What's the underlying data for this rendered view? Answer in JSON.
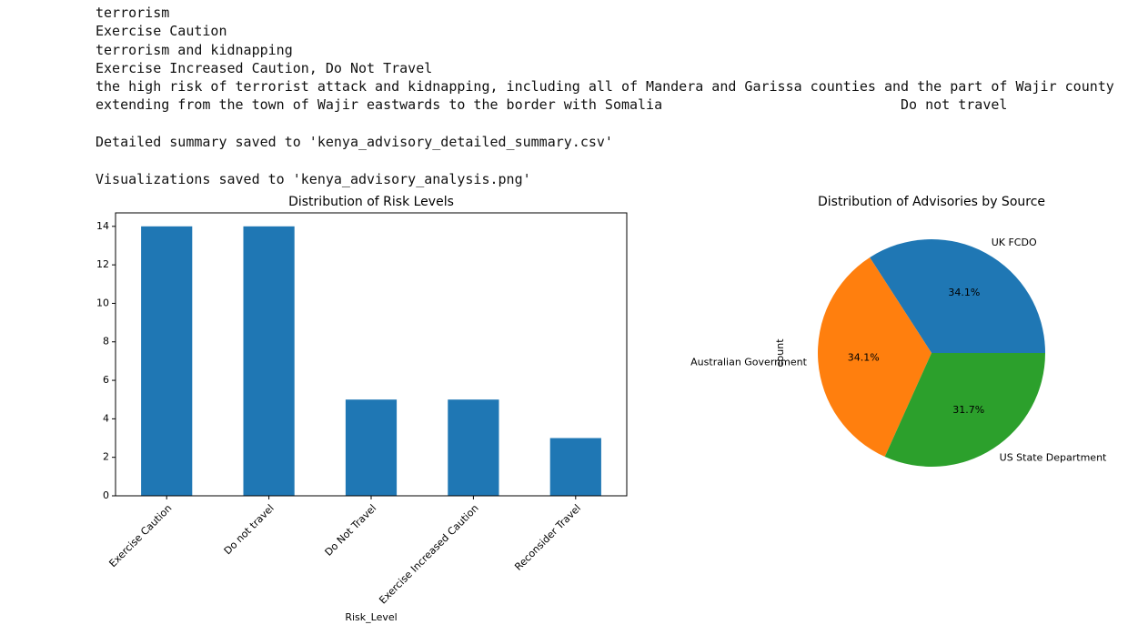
{
  "console": {
    "blocks": [
      [
        "terrorism",
        "Exercise Caution",
        "terrorism and kidnapping",
        "Exercise Increased Caution, Do Not Travel",
        "the high risk of terrorist attack and kidnapping, including all of Mandera and Garissa counties and the part of Wajir county",
        "extending from the town of Wajir eastwards to the border with Somalia                             Do not travel"
      ],
      [
        "Detailed summary saved to 'kenya_advisory_detailed_summary.csv'"
      ],
      [
        "Visualizations saved to 'kenya_advisory_analysis.png'"
      ]
    ]
  },
  "chart_data": [
    {
      "type": "bar",
      "title": "Distribution of Risk Levels",
      "x_label": "Risk_Level",
      "categories": [
        "Exercise Caution",
        "Do not travel",
        "Do Not Travel",
        "Exercise Increased Caution",
        "Reconsider Travel"
      ],
      "values": [
        14,
        14,
        5,
        5,
        3
      ],
      "color": "#1f77b4",
      "ylim": [
        0,
        14.7
      ],
      "yticks": [
        0,
        2,
        4,
        6,
        8,
        10,
        12,
        14
      ]
    },
    {
      "type": "pie",
      "title": "Distribution of Advisories by Source",
      "y_label": "count",
      "categories": [
        "UK FCDO",
        "Australian Government",
        "US State Department"
      ],
      "values": [
        34.1,
        34.1,
        31.7
      ],
      "value_labels": [
        "34.1%",
        "34.1%",
        "31.7%"
      ],
      "colors": [
        "#1f77b4",
        "#ff7f0e",
        "#2ca02c"
      ]
    }
  ]
}
